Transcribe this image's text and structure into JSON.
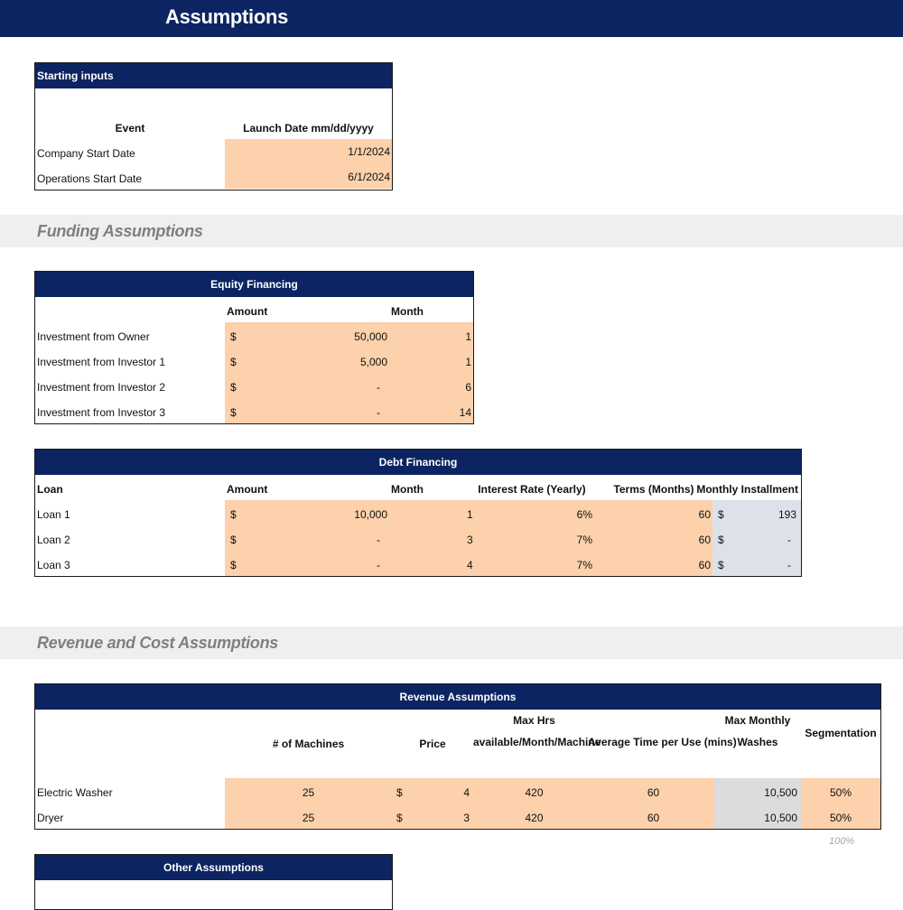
{
  "page": {
    "title": "Assumptions"
  },
  "starting_inputs": {
    "header": "Starting inputs",
    "col_event": "Event",
    "col_date": "Launch Date mm/dd/yyyy",
    "rows": [
      {
        "label": "Company Start Date",
        "date": "1/1/2024"
      },
      {
        "label": "Operations Start Date",
        "date": "6/1/2024"
      }
    ]
  },
  "funding": {
    "section_title": "Funding Assumptions",
    "equity": {
      "header": "Equity Financing",
      "col_amount": "Amount",
      "col_month": "Month",
      "currency": "$",
      "rows": [
        {
          "label": "Investment from Owner",
          "amount": "50,000",
          "month": "1"
        },
        {
          "label": "Investment from Investor 1",
          "amount": "5,000",
          "month": "1"
        },
        {
          "label": "Investment from Investor 2",
          "amount": "-",
          "month": "6"
        },
        {
          "label": "Investment from Investor 3",
          "amount": "-",
          "month": "14"
        }
      ]
    },
    "debt": {
      "header": "Debt Financing",
      "col_loan": "Loan",
      "col_amount": "Amount",
      "col_month": "Month",
      "col_rate": "Interest Rate (Yearly)",
      "col_terms": "Terms (Months)",
      "col_installment": "Monthly Installment",
      "currency": "$",
      "rows": [
        {
          "label": "Loan 1",
          "amount": "10,000",
          "month": "1",
          "rate": "6%",
          "terms": "60",
          "installment": "193"
        },
        {
          "label": "Loan 2",
          "amount": "-",
          "month": "3",
          "rate": "7%",
          "terms": "60",
          "installment": "-"
        },
        {
          "label": "Loan 3",
          "amount": "-",
          "month": "4",
          "rate": "7%",
          "terms": "60",
          "installment": "-"
        }
      ]
    }
  },
  "revenue": {
    "section_title": "Revenue and Cost Assumptions",
    "header": "Revenue Assumptions",
    "col_machines": "# of Machines",
    "col_price": "Price",
    "col_maxhrs_1": "Max Hrs",
    "col_maxhrs_2": "available/Month/Machine",
    "col_avgtime": "Average Time per Use (mins)",
    "col_maxwash_1": "Max Monthly",
    "col_maxwash_2": "Washes",
    "col_segmentation": "Segmentation",
    "currency": "$",
    "rows": [
      {
        "label": "Electric Washer",
        "machines": "25",
        "price": "4",
        "max_hrs": "420",
        "avg_time": "60",
        "max_washes": "10,500",
        "segmentation": "50%"
      },
      {
        "label": "Dryer",
        "machines": "25",
        "price": "3",
        "max_hrs": "420",
        "avg_time": "60",
        "max_washes": "10,500",
        "segmentation": "50%"
      }
    ],
    "segmentation_total": "100%"
  },
  "other": {
    "header": "Other Assumptions"
  },
  "colors": {
    "navy": "#0c2461",
    "input_orange": "#fcd1ab",
    "calc_blue": "#dde2ea",
    "calc_gray": "#dcdcdc",
    "section_band": "#efefef"
  }
}
